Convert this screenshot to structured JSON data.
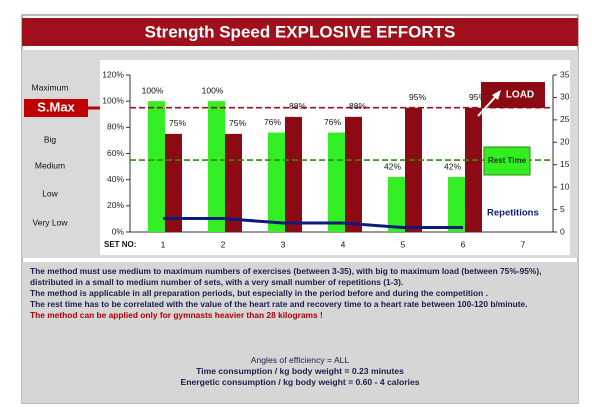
{
  "chart_data": {
    "type": "bar",
    "title": "Strength Speed EXPLOSIVE EFFORTS",
    "side_labels": [
      "Maximum",
      "S.Max",
      "Big",
      "Medium",
      "Low",
      "Very Low"
    ],
    "side_highlight": 1,
    "x_label": "SET NO:",
    "categories": [
      "1",
      "2",
      "3",
      "4",
      "5",
      "6",
      "7"
    ],
    "ylim": [
      0,
      120
    ],
    "yticks": [
      {
        "value": 0,
        "label": "0%"
      },
      {
        "value": 20,
        "label": "20%"
      },
      {
        "value": 40,
        "label": "40%"
      },
      {
        "value": 60,
        "label": "60%"
      },
      {
        "value": 80,
        "label": "80%"
      },
      {
        "value": 100,
        "label": "100%"
      },
      {
        "value": 120,
        "label": "120%"
      }
    ],
    "y2lim": [
      0,
      35
    ],
    "y2ticks": [
      0,
      5,
      10,
      15,
      20,
      25,
      30,
      35
    ],
    "series": [
      {
        "name": "Rest Time",
        "color": "#33ee22",
        "values": [
          100,
          100,
          76,
          76,
          42,
          42,
          null
        ],
        "value_labels": [
          "100%",
          "100%",
          "76%",
          "76%",
          "42%",
          "42%",
          null
        ]
      },
      {
        "name": "LOAD",
        "color": "#8b0a14",
        "values": [
          75,
          75,
          88,
          88,
          95,
          95,
          null
        ],
        "value_labels": [
          "75%",
          "75%",
          "88%",
          "88%",
          "95%",
          "95%",
          null
        ]
      },
      {
        "name": "Repetitions",
        "color": "#0c1a7a",
        "axis": "y2",
        "values": [
          3,
          3,
          2,
          2,
          1,
          1,
          null
        ]
      }
    ],
    "reference_lines": [
      {
        "value": 95,
        "color": "#a0101c"
      },
      {
        "value": 55,
        "color": "#2e8b10"
      }
    ],
    "notes": [
      "The method must use medium to maximum numbers of exercises (between 3-35), with big to maximum  load (between 75%-95%), distributed in a small to medium number of sets, with a very small number of repetitions (1-3).",
      "The method is applicable in all preparation periods, but especially in the period before and during  the competition .",
      "The rest time has to be correlated with the value of the heart rate and recovery time to a heart rate between 100-120 b/minute."
    ],
    "warning": "The method can be applied only for gymnasts heavier than 28 kilograms !",
    "summary": [
      "Angles of efficiency = ALL",
      "Time consumption /  kg body weight = 0.23 minutes",
      "Energetic consumption /  kg body weight =  0.60 - 4 calories"
    ]
  }
}
